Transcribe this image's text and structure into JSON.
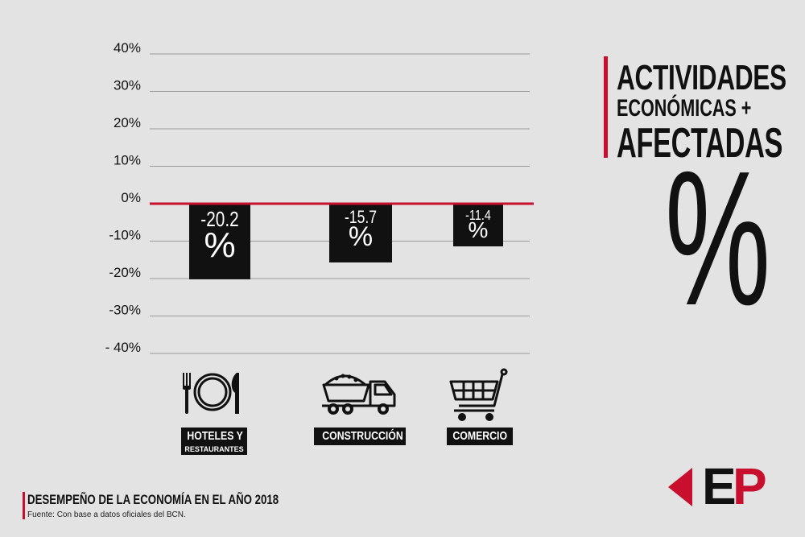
{
  "chart_data": {
    "type": "bar",
    "categories": [
      "HOTELES Y RESTAURANTES",
      "CONSTRUCCIÓN",
      "COMERCIO"
    ],
    "values": [
      -20.2,
      -15.7,
      -11.4
    ],
    "bar_labels": [
      {
        "value": "-20.2",
        "unit": "%"
      },
      {
        "value": "-15.7",
        "unit": "%"
      },
      {
        "value": "-11.4",
        "unit": "%"
      }
    ],
    "yticks": [
      {
        "value": 40,
        "label": "40%"
      },
      {
        "value": 30,
        "label": "30%"
      },
      {
        "value": 20,
        "label": "20%"
      },
      {
        "value": 10,
        "label": "10%"
      },
      {
        "value": 0,
        "label": "0%"
      },
      {
        "value": -10,
        "label": "-10%"
      },
      {
        "value": -20,
        "label": "-20%"
      },
      {
        "value": -30,
        "label": "-30%"
      },
      {
        "value": -40,
        "label": "- 40%"
      }
    ],
    "ylim": [
      -40,
      40
    ],
    "grid": true,
    "title": "",
    "xlabel": "",
    "ylabel": ""
  },
  "categories": [
    {
      "line1": "HOTELES Y",
      "line2": "RESTAURANTES",
      "icon": "plate-cutlery-icon"
    },
    {
      "line1": "CONSTRUCCIÓN",
      "icon": "dump-truck-icon"
    },
    {
      "line1": "COMERCIO",
      "icon": "shopping-cart-icon"
    }
  ],
  "headline": {
    "line1": "ACTIVIDADES",
    "line2": "ECONÓMICAS +",
    "line3": "AFECTADAS",
    "symbol": "%"
  },
  "footer": {
    "title": "DESEMPEÑO DE LA ECONOMÍA EN EL AÑO 2018",
    "source": "Fuente: Con base a datos oficiales del BCN."
  },
  "logo": {
    "letter1": "E",
    "letter2": "P"
  },
  "colors": {
    "background": "#e3e3e3",
    "bar": "#111111",
    "zero_line": "#c8102e",
    "grid": "#9a9a9a",
    "accent": "#c8102e"
  }
}
